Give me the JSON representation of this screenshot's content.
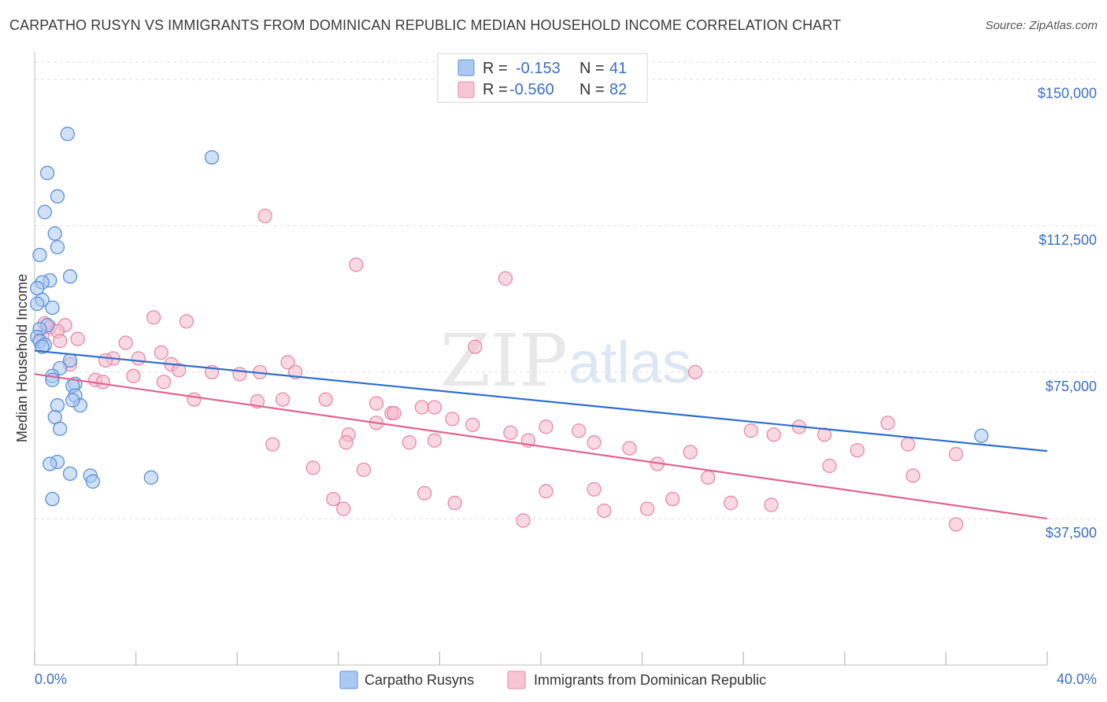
{
  "title": "CARPATHO RUSYN VS IMMIGRANTS FROM DOMINICAN REPUBLIC MEDIAN HOUSEHOLD INCOME CORRELATION CHART",
  "source": "Source: ZipAtlas.com",
  "watermark": {
    "zip": "ZIP",
    "atlas": "atlas"
  },
  "colors": {
    "blue_fill": "#a9c8f2",
    "blue_stroke": "#5b8fd6",
    "blue_line": "#2f6fcc",
    "pink_fill": "#f6b8cb",
    "pink_stroke": "#e58aa8",
    "pink_line": "#e0648f",
    "grid": "#dddddd",
    "label": "#3b6fc4"
  },
  "legend": {
    "rows": [
      {
        "r_label": "R =",
        "r_value": "-0.153",
        "n_label": "N =",
        "n_value": "41"
      },
      {
        "r_label": "R =",
        "r_value": "-0.560",
        "n_label": "N =",
        "n_value": "82"
      }
    ]
  },
  "chart_data": {
    "type": "scatter",
    "title": "CARPATHO RUSYN VS IMMIGRANTS FROM DOMINICAN REPUBLIC MEDIAN HOUSEHOLD INCOME CORRELATION CHART",
    "xlabel": "",
    "ylabel": "Median Household Income",
    "xlim": [
      0,
      40
    ],
    "ylim": [
      0,
      157000
    ],
    "x_tick_labels": [
      "0.0%",
      "40.0%"
    ],
    "y_ticks": [
      {
        "value": 37500,
        "label": "$37,500"
      },
      {
        "value": 75000,
        "label": "$75,000"
      },
      {
        "value": 112500,
        "label": "$112,500"
      },
      {
        "value": 150000,
        "label": "$150,000"
      }
    ],
    "series": [
      {
        "name": "Carpatho Rusyns",
        "color": "#5b8fd6",
        "trend": {
          "x": [
            0,
            40
          ],
          "y": [
            80500,
            54800
          ]
        },
        "points": [
          [
            1.3,
            136000
          ],
          [
            0.5,
            126000
          ],
          [
            7.0,
            130000
          ],
          [
            0.9,
            120000
          ],
          [
            0.4,
            116000
          ],
          [
            0.8,
            110500
          ],
          [
            0.9,
            107000
          ],
          [
            0.2,
            105000
          ],
          [
            1.4,
            99500
          ],
          [
            0.6,
            98500
          ],
          [
            0.3,
            98000
          ],
          [
            0.1,
            96500
          ],
          [
            0.3,
            93500
          ],
          [
            0.1,
            92500
          ],
          [
            0.7,
            91500
          ],
          [
            0.5,
            87000
          ],
          [
            0.2,
            86000
          ],
          [
            0.1,
            84000
          ],
          [
            0.2,
            83000
          ],
          [
            0.4,
            82000
          ],
          [
            0.3,
            81500
          ],
          [
            1.4,
            78000
          ],
          [
            1.0,
            76000
          ],
          [
            0.7,
            74000
          ],
          [
            0.7,
            73000
          ],
          [
            1.6,
            72000
          ],
          [
            1.5,
            71500
          ],
          [
            1.6,
            69000
          ],
          [
            0.9,
            66500
          ],
          [
            1.8,
            66500
          ],
          [
            0.8,
            63500
          ],
          [
            1.0,
            60500
          ],
          [
            0.9,
            52000
          ],
          [
            0.6,
            51500
          ],
          [
            1.4,
            49000
          ],
          [
            2.2,
            48500
          ],
          [
            4.6,
            48000
          ],
          [
            2.3,
            47000
          ],
          [
            0.7,
            42500
          ],
          [
            37.4,
            58700
          ],
          [
            1.5,
            67800
          ]
        ]
      },
      {
        "name": "Immigrants from Dominican Republic",
        "color": "#e58aa8",
        "trend": {
          "x": [
            0,
            40
          ],
          "y": [
            74500,
            37500
          ]
        },
        "points": [
          [
            9.1,
            115000
          ],
          [
            12.7,
            102500
          ],
          [
            18.6,
            99000
          ],
          [
            4.7,
            89000
          ],
          [
            6.0,
            88000
          ],
          [
            0.4,
            87500
          ],
          [
            1.2,
            87000
          ],
          [
            0.6,
            86500
          ],
          [
            0.9,
            85500
          ],
          [
            0.3,
            84000
          ],
          [
            1.7,
            83500
          ],
          [
            3.6,
            82500
          ],
          [
            1.0,
            83000
          ],
          [
            5.0,
            80000
          ],
          [
            4.1,
            78500
          ],
          [
            3.1,
            78500
          ],
          [
            2.8,
            78000
          ],
          [
            5.4,
            77000
          ],
          [
            17.4,
            81500
          ],
          [
            10.0,
            77500
          ],
          [
            1.4,
            77000
          ],
          [
            2.4,
            73000
          ],
          [
            3.9,
            74000
          ],
          [
            5.7,
            75500
          ],
          [
            7.0,
            75000
          ],
          [
            8.1,
            74500
          ],
          [
            8.9,
            75000
          ],
          [
            10.3,
            75000
          ],
          [
            2.7,
            72500
          ],
          [
            5.1,
            72500
          ],
          [
            26.1,
            75000
          ],
          [
            6.3,
            68000
          ],
          [
            8.8,
            67500
          ],
          [
            9.8,
            68000
          ],
          [
            11.5,
            68000
          ],
          [
            13.5,
            67000
          ],
          [
            15.3,
            66000
          ],
          [
            14.1,
            64500
          ],
          [
            12.4,
            59000
          ],
          [
            13.5,
            62000
          ],
          [
            14.2,
            64500
          ],
          [
            15.8,
            66000
          ],
          [
            16.5,
            63000
          ],
          [
            17.3,
            61500
          ],
          [
            18.8,
            59500
          ],
          [
            20.2,
            61000
          ],
          [
            21.5,
            60000
          ],
          [
            22.1,
            57000
          ],
          [
            23.5,
            55500
          ],
          [
            25.9,
            54500
          ],
          [
            28.3,
            60000
          ],
          [
            29.2,
            59000
          ],
          [
            30.2,
            61000
          ],
          [
            31.2,
            59000
          ],
          [
            33.7,
            62000
          ],
          [
            34.5,
            56500
          ],
          [
            36.4,
            54000
          ],
          [
            9.4,
            56500
          ],
          [
            11.0,
            50500
          ],
          [
            12.3,
            57000
          ],
          [
            13.0,
            50000
          ],
          [
            14.8,
            57000
          ],
          [
            15.8,
            57500
          ],
          [
            19.5,
            57500
          ],
          [
            20.2,
            44500
          ],
          [
            22.1,
            45000
          ],
          [
            24.6,
            51500
          ],
          [
            26.6,
            48000
          ],
          [
            27.5,
            41500
          ],
          [
            29.1,
            41000
          ],
          [
            31.4,
            51000
          ],
          [
            32.5,
            55000
          ],
          [
            34.7,
            48500
          ],
          [
            36.4,
            36000
          ],
          [
            25.2,
            42500
          ],
          [
            24.2,
            40000
          ],
          [
            22.5,
            39500
          ],
          [
            19.3,
            37000
          ],
          [
            16.6,
            41500
          ],
          [
            15.4,
            44000
          ],
          [
            12.2,
            40000
          ],
          [
            11.8,
            42500
          ]
        ]
      }
    ],
    "legend_position": "top-center",
    "grid": true
  },
  "axes": {
    "y_title": "Median Household Income",
    "x_left_label": "0.0%",
    "x_right_label": "40.0%",
    "y_labels": [
      "$150,000",
      "$112,500",
      "$75,000",
      "$37,500"
    ]
  },
  "bottom_legend": {
    "items": [
      {
        "label": "Carpatho Rusyns"
      },
      {
        "label": "Immigrants from Dominican Republic"
      }
    ]
  }
}
